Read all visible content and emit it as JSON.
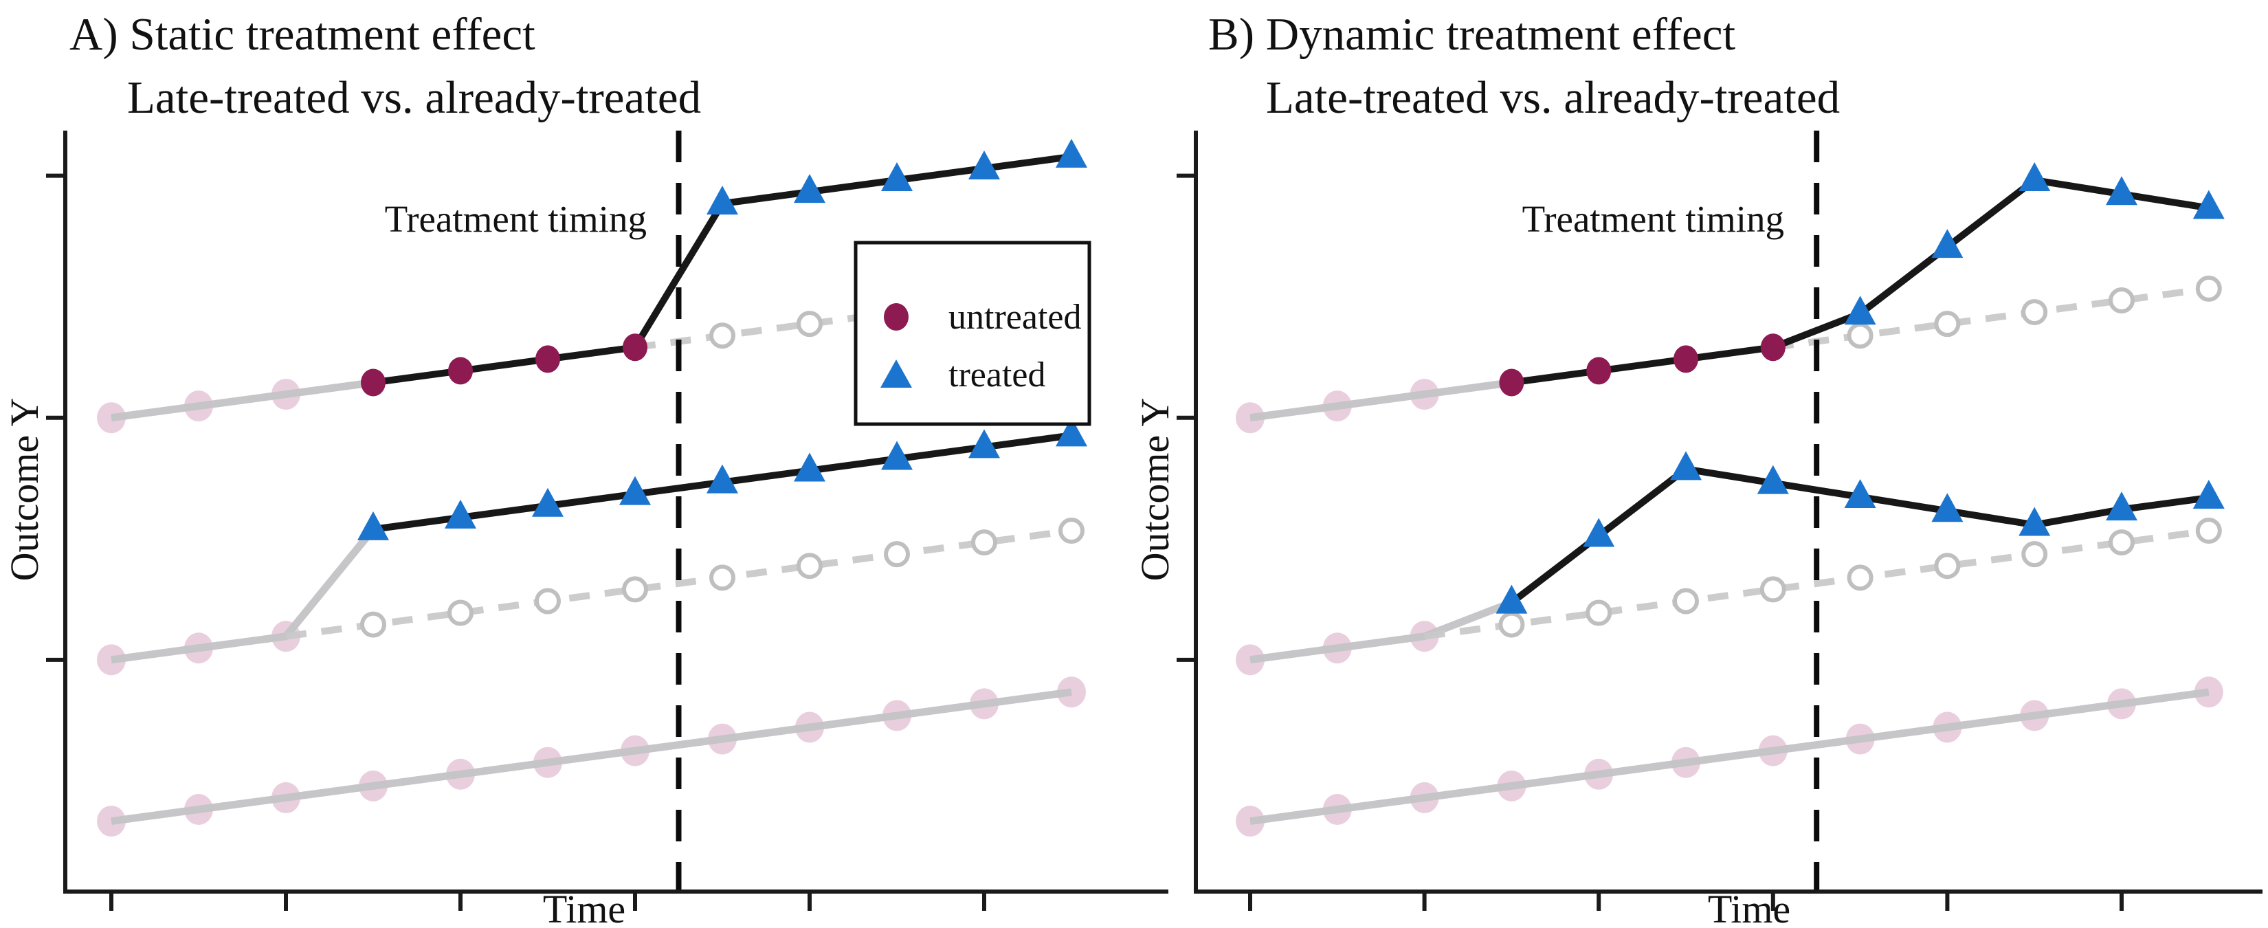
{
  "panels": [
    {
      "id": "A",
      "title_line1": "A) Static treatment effect",
      "title_line2": "Late-treated vs. already-treated",
      "treatment_label": "Treatment timing",
      "xlabel": "Time",
      "ylabel": "Outcome Y"
    },
    {
      "id": "B",
      "title_line1": "B) Dynamic treatment effect",
      "title_line2": "Late-treated vs. already-treated",
      "treatment_label": "Treatment timing",
      "xlabel": "Time",
      "ylabel": "Outcome Y"
    }
  ],
  "legend": {
    "items": [
      {
        "label": "untreated",
        "marker": "maroon-circle"
      },
      {
        "label": "treated",
        "marker": "blue-triangle"
      }
    ]
  },
  "colors": {
    "treated_blue": "#1b75cf",
    "untreated_maroon": "#8e1a52",
    "faded_pink_fill": "#e8ccdc",
    "faded_grey_line": "#c3c3c5",
    "counterfactual_grey": "#c9c9c9",
    "open_circle_stroke": "#bfbfbf",
    "actual_black": "#0b0b0b",
    "axis_black": "#1a1a1a"
  },
  "chart_data": [
    {
      "type": "line",
      "panel": "A",
      "title": "A) Static treatment effect — Late-treated vs. already-treated",
      "xlabel": "Time",
      "ylabel": "Outcome Y",
      "x_range": [
        1,
        12
      ],
      "y_units": "relative outcome units (axes unlabeled in figure), 0 = bottom axis",
      "treatment_line_between_periods": [
        7,
        8
      ],
      "already_treated_group_treated_at": 4,
      "late_treated_group_treated_at": 8,
      "xticks_t": [
        1,
        3,
        5,
        7,
        9,
        11
      ],
      "yticks_v": [
        97.6,
        64.6,
        31.6
      ],
      "series": [
        {
          "name": "never-treated",
          "marker": "faded-circle",
          "line": "grey-solid",
          "points": [
            [
              1,
              9.6
            ],
            [
              2,
              11.2
            ],
            [
              3,
              12.8
            ],
            [
              4,
              14.4
            ],
            [
              5,
              16.0
            ],
            [
              6,
              17.6
            ],
            [
              7,
              19.2
            ],
            [
              8,
              20.8
            ],
            [
              9,
              22.4
            ],
            [
              10,
              24.0
            ],
            [
              11,
              25.6
            ],
            [
              12,
              27.2
            ]
          ]
        },
        {
          "name": "already-treated-pre",
          "marker": "faded-circle",
          "line": "grey-solid",
          "line_to": [
            4,
            49.4
          ],
          "points": [
            [
              1,
              31.6
            ],
            [
              2,
              33.2
            ],
            [
              3,
              34.8
            ]
          ]
        },
        {
          "name": "already-treated-counterfactual",
          "marker": "open-circle",
          "line": "grey-dashed",
          "line_from": [
            3,
            34.8
          ],
          "points": [
            [
              4,
              36.4
            ],
            [
              5,
              38.0
            ],
            [
              6,
              39.6
            ],
            [
              7,
              41.2
            ],
            [
              8,
              42.8
            ],
            [
              9,
              44.4
            ],
            [
              10,
              46.0
            ],
            [
              11,
              47.6
            ],
            [
              12,
              49.2
            ]
          ]
        },
        {
          "name": "already-treated-treated",
          "marker": "blue-triangle",
          "line": "black-solid",
          "points": [
            [
              4,
              49.4
            ],
            [
              5,
              51.0
            ],
            [
              6,
              52.6
            ],
            [
              7,
              54.2
            ],
            [
              8,
              55.8
            ],
            [
              9,
              57.4
            ],
            [
              10,
              59.0
            ],
            [
              11,
              60.6
            ],
            [
              12,
              62.2
            ]
          ]
        },
        {
          "name": "late-treated-pre",
          "marker": "faded-circle",
          "line": "grey-solid",
          "line_to": [
            4,
            69.4
          ],
          "points": [
            [
              1,
              64.6
            ],
            [
              2,
              66.2
            ],
            [
              3,
              67.8
            ]
          ]
        },
        {
          "name": "late-treated-untreated",
          "marker": "maroon-circle",
          "line": "black-solid",
          "points": [
            [
              4,
              69.4
            ],
            [
              5,
              71.0
            ],
            [
              6,
              72.6
            ],
            [
              7,
              74.2
            ]
          ]
        },
        {
          "name": "late-treated-counterfactual",
          "marker": "open-circle",
          "line": "grey-dashed",
          "line_from": [
            7,
            74.2
          ],
          "points": [
            [
              8,
              75.8
            ],
            [
              9,
              77.4
            ],
            [
              10,
              79.0
            ],
            [
              11,
              80.6
            ],
            [
              12,
              82.2
            ]
          ]
        },
        {
          "name": "late-treated-treated",
          "marker": "blue-triangle",
          "line": "black-solid",
          "line_from": [
            7,
            74.2
          ],
          "points": [
            [
              8,
              93.8
            ],
            [
              9,
              95.4
            ],
            [
              10,
              97.0
            ],
            [
              11,
              98.6
            ],
            [
              12,
              100.2
            ]
          ]
        }
      ]
    },
    {
      "type": "line",
      "panel": "B",
      "title": "B) Dynamic treatment effect — Late-treated vs. already-treated",
      "xlabel": "Time",
      "ylabel": "Outcome Y",
      "x_range": [
        1,
        12
      ],
      "y_units": "relative outcome units (axes unlabeled in figure), 0 = bottom axis",
      "treatment_line_between_periods": [
        7,
        8
      ],
      "already_treated_group_treated_at": 4,
      "late_treated_group_treated_at": 8,
      "xticks_t": [
        1,
        3,
        5,
        7,
        9,
        11
      ],
      "yticks_v": [
        97.6,
        64.6,
        31.6
      ],
      "series": [
        {
          "name": "never-treated",
          "marker": "faded-circle",
          "line": "grey-solid",
          "points": [
            [
              1,
              9.6
            ],
            [
              2,
              11.2
            ],
            [
              3,
              12.8
            ],
            [
              4,
              14.4
            ],
            [
              5,
              16.0
            ],
            [
              6,
              17.6
            ],
            [
              7,
              19.2
            ],
            [
              8,
              20.8
            ],
            [
              9,
              22.4
            ],
            [
              10,
              24.0
            ],
            [
              11,
              25.6
            ],
            [
              12,
              27.2
            ]
          ]
        },
        {
          "name": "already-treated-pre",
          "marker": "faded-circle",
          "line": "grey-solid",
          "line_to": [
            4,
            39.4
          ],
          "points": [
            [
              1,
              31.6
            ],
            [
              2,
              33.2
            ],
            [
              3,
              34.8
            ]
          ]
        },
        {
          "name": "already-treated-counterfactual",
          "marker": "open-circle",
          "line": "grey-dashed",
          "line_from": [
            3,
            34.8
          ],
          "points": [
            [
              4,
              36.4
            ],
            [
              5,
              38.0
            ],
            [
              6,
              39.6
            ],
            [
              7,
              41.2
            ],
            [
              8,
              42.8
            ],
            [
              9,
              44.4
            ],
            [
              10,
              46.0
            ],
            [
              11,
              47.6
            ],
            [
              12,
              49.2
            ]
          ]
        },
        {
          "name": "already-treated-treated",
          "marker": "blue-triangle",
          "line": "black-solid",
          "points": [
            [
              4,
              39.4
            ],
            [
              5,
              48.5
            ],
            [
              6,
              57.6
            ],
            [
              7,
              55.7
            ],
            [
              8,
              53.8
            ],
            [
              9,
              51.9
            ],
            [
              10,
              50.0
            ],
            [
              11,
              52.1
            ],
            [
              12,
              53.7
            ]
          ]
        },
        {
          "name": "late-treated-pre",
          "marker": "faded-circle",
          "line": "grey-solid",
          "line_to": [
            4,
            69.4
          ],
          "points": [
            [
              1,
              64.6
            ],
            [
              2,
              66.2
            ],
            [
              3,
              67.8
            ]
          ]
        },
        {
          "name": "late-treated-untreated",
          "marker": "maroon-circle",
          "line": "black-solid",
          "points": [
            [
              4,
              69.4
            ],
            [
              5,
              71.0
            ],
            [
              6,
              72.6
            ],
            [
              7,
              74.2
            ]
          ]
        },
        {
          "name": "late-treated-counterfactual",
          "marker": "open-circle",
          "line": "grey-dashed",
          "line_from": [
            7,
            74.2
          ],
          "points": [
            [
              8,
              75.8
            ],
            [
              9,
              77.4
            ],
            [
              10,
              79.0
            ],
            [
              11,
              80.6
            ],
            [
              12,
              82.2
            ]
          ]
        },
        {
          "name": "late-treated-treated",
          "marker": "blue-triangle",
          "line": "black-solid",
          "line_from": [
            7,
            74.2
          ],
          "points": [
            [
              8,
              78.8
            ],
            [
              9,
              87.9
            ],
            [
              10,
              97.0
            ],
            [
              11,
              95.1
            ],
            [
              12,
              93.2
            ]
          ]
        }
      ]
    }
  ]
}
